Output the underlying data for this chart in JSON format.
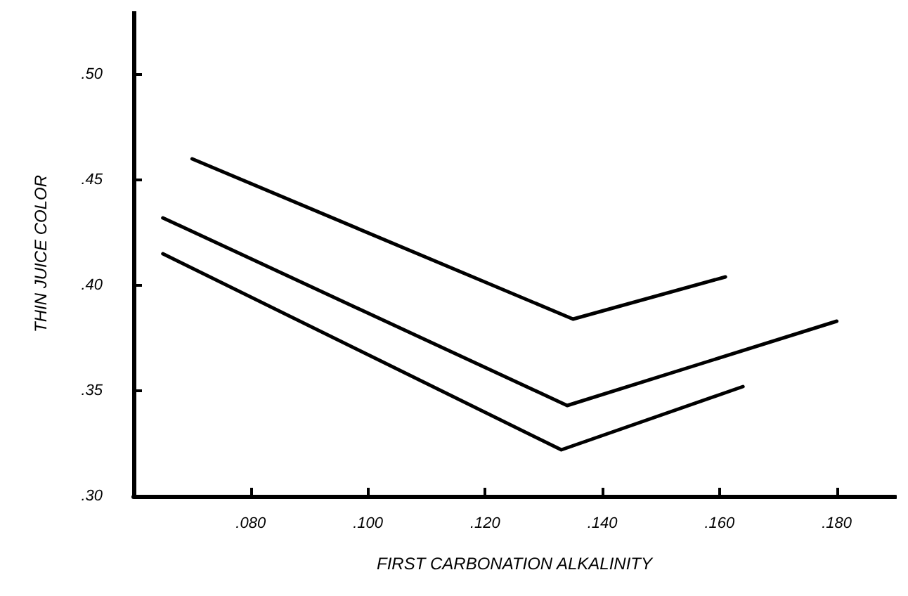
{
  "chart_data": {
    "type": "line",
    "xlabel": "FIRST CARBONATION ALKALINITY",
    "ylabel": "THIN JUICE COLOR",
    "xlim": [
      0.06,
      0.19
    ],
    "ylim": [
      0.3,
      0.53
    ],
    "xticks": [
      {
        "value": 0.08,
        "label": ".080"
      },
      {
        "value": 0.1,
        "label": ".100"
      },
      {
        "value": 0.12,
        "label": ".120"
      },
      {
        "value": 0.14,
        "label": ".140"
      },
      {
        "value": 0.16,
        "label": ".160"
      },
      {
        "value": 0.18,
        "label": ".180"
      }
    ],
    "yticks": [
      {
        "value": 0.3,
        "label": ".30"
      },
      {
        "value": 0.35,
        "label": ".35"
      },
      {
        "value": 0.4,
        "label": ".40"
      },
      {
        "value": 0.45,
        "label": ".45"
      },
      {
        "value": 0.5,
        "label": ".50"
      }
    ],
    "series": [
      {
        "color": "#000000",
        "x": [
          0.07,
          0.135,
          0.161
        ],
        "values": [
          0.46,
          0.384,
          0.404
        ]
      },
      {
        "color": "#000000",
        "x": [
          0.065,
          0.134,
          0.18
        ],
        "values": [
          0.432,
          0.343,
          0.383
        ]
      },
      {
        "color": "#000000",
        "x": [
          0.065,
          0.133,
          0.164
        ],
        "values": [
          0.415,
          0.322,
          0.352
        ]
      }
    ],
    "grid": false,
    "marker": "none",
    "line_style": "solid"
  }
}
